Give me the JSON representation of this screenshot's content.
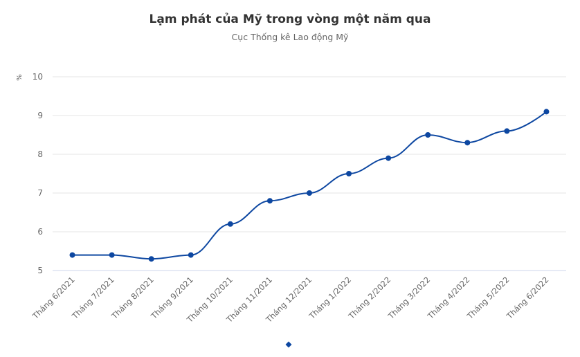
{
  "chart_data": {
    "type": "line",
    "title": "Lạm phát của Mỹ trong vòng một năm qua",
    "subtitle": "Cục Thống kê Lao động Mỹ",
    "ylabel": "%",
    "xlabel": "",
    "categories": [
      "Tháng 6/2021",
      "Tháng 7/2021",
      "Tháng 8/2021",
      "Tháng 9/2021",
      "Tháng 10/2021",
      "Tháng 11/2021",
      "Tháng 12/2021",
      "Tháng 1/2022",
      "Tháng 2/2022",
      "Tháng 3/2022",
      "Tháng 4/2022",
      "Tháng 5/2022",
      "Tháng 6/2022"
    ],
    "series": [
      {
        "values": [
          5.4,
          5.4,
          5.3,
          5.4,
          6.2,
          6.8,
          7.0,
          7.5,
          7.9,
          8.5,
          8.3,
          8.6,
          9.1
        ],
        "color": "#0d47a1"
      }
    ],
    "ylim": [
      5,
      10
    ],
    "yticks": [
      5,
      6,
      7,
      8,
      9,
      10
    ],
    "grid": true,
    "legend": "bottom-center"
  }
}
